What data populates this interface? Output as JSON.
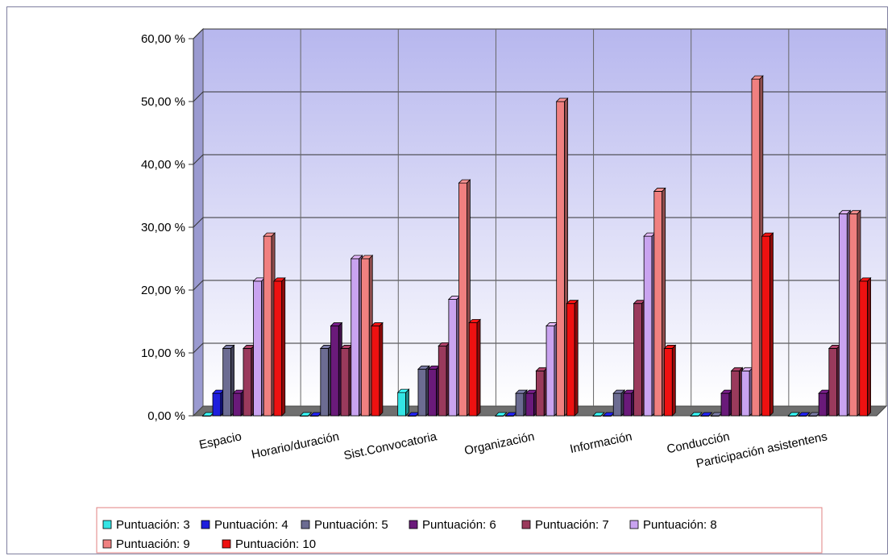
{
  "chart_data": {
    "type": "bar",
    "categories": [
      "Espacio",
      "Horario/duración",
      "Sist.Convocatoria",
      "Organización",
      "Información",
      "Conducción",
      "Participación asistentens"
    ],
    "series": [
      {
        "name": "Puntuación: 3",
        "color": "#33e5e5",
        "values": [
          0,
          0,
          3.7,
          0,
          0,
          0,
          0
        ]
      },
      {
        "name": "Puntuación: 4",
        "color": "#1f1fdd",
        "values": [
          3.57,
          0,
          0,
          0,
          0,
          0,
          0
        ]
      },
      {
        "name": "Puntuación: 5",
        "color": "#6c6c92",
        "values": [
          10.71,
          10.71,
          7.41,
          3.57,
          3.57,
          0,
          0
        ]
      },
      {
        "name": "Puntuación: 6",
        "color": "#6a1a7a",
        "values": [
          3.57,
          14.29,
          7.41,
          3.57,
          3.57,
          3.57,
          3.57
        ]
      },
      {
        "name": "Puntuación: 7",
        "color": "#9a3a5c",
        "values": [
          10.71,
          10.71,
          11.11,
          7.14,
          17.86,
          7.14,
          10.71
        ]
      },
      {
        "name": "Puntuación: 8",
        "color": "#c9a3f0",
        "values": [
          21.43,
          25.0,
          18.52,
          14.29,
          28.57,
          7.14,
          32.14
        ]
      },
      {
        "name": "Puntuación: 9",
        "color": "#f08080",
        "values": [
          28.57,
          25.0,
          37.04,
          50.0,
          35.71,
          53.57,
          32.14
        ]
      },
      {
        "name": "Puntuación: 10",
        "color": "#ee1111",
        "values": [
          21.43,
          14.29,
          14.81,
          17.86,
          10.71,
          28.57,
          21.43
        ]
      }
    ],
    "yticks": [
      "0,00 %",
      "10,00 %",
      "20,00 %",
      "30,00 %",
      "40,00 %",
      "50,00 %",
      "60,00 %"
    ],
    "ylim": [
      0,
      60
    ],
    "grid": true,
    "legend_position": "bottom"
  }
}
